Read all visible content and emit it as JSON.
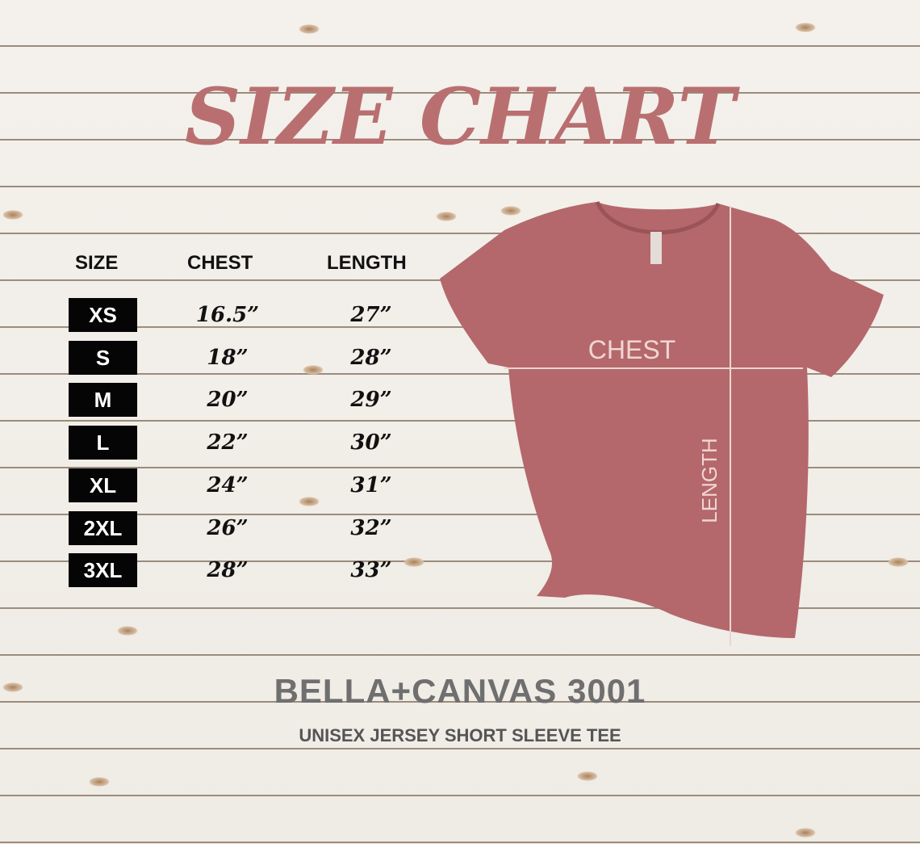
{
  "title": "SIZE CHART",
  "table": {
    "headers": [
      "SIZE",
      "CHEST",
      "LENGTH"
    ],
    "rows": [
      {
        "size": "XS",
        "chest": "16.5”",
        "length": "27”"
      },
      {
        "size": "S",
        "chest": "18”",
        "length": "28”"
      },
      {
        "size": "M",
        "chest": "20”",
        "length": "29”"
      },
      {
        "size": "L",
        "chest": "22”",
        "length": "30”"
      },
      {
        "size": "XL",
        "chest": "24”",
        "length": "31”"
      },
      {
        "size": "2XL",
        "chest": "26”",
        "length": "32”"
      },
      {
        "size": "3XL",
        "chest": "28”",
        "length": "33”"
      }
    ]
  },
  "diagram": {
    "chest_label": "CHEST",
    "length_label": "LENGTH",
    "shirt_color": "#b4686b"
  },
  "brand": {
    "model": "BELLA+CANVAS 3001",
    "description": "UNISEX JERSEY SHORT SLEEVE TEE"
  },
  "colors": {
    "title": "#b96f70",
    "size_box": "#050505",
    "brand_text": "#6f6f6f"
  }
}
